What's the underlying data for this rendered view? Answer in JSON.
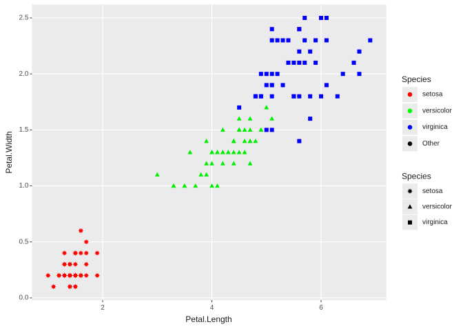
{
  "chart_data": {
    "type": "scatter",
    "x_label": "Petal.Length",
    "y_label": "Petal.Width",
    "xlim": [
      0.705,
      7.195
    ],
    "ylim": [
      -0.02,
      2.62
    ],
    "xticks": [
      2,
      4,
      6
    ],
    "yticks": [
      {
        "value": 0,
        "label": "0.0"
      },
      {
        "value": 0.5,
        "label": "0.5"
      },
      {
        "value": 1,
        "label": "1.0"
      },
      {
        "value": 1.5,
        "label": "1.5"
      },
      {
        "value": 2,
        "label": "2.0"
      },
      {
        "value": 2.5,
        "label": "2.5"
      }
    ],
    "grid": true,
    "series": [
      {
        "name": "setosa",
        "color": "#ff0000",
        "shape": "star",
        "x": [
          1.4,
          1.4,
          1.3,
          1.5,
          1.4,
          1.7,
          1.4,
          1.5,
          1.4,
          1.5,
          1.5,
          1.6,
          1.4,
          1.1,
          1.2,
          1.5,
          1.3,
          1.4,
          1.7,
          1.5,
          1.7,
          1.5,
          1.0,
          1.7,
          1.9,
          1.6,
          1.6,
          1.5,
          1.4,
          1.6,
          1.6,
          1.5,
          1.5,
          1.4,
          1.5,
          1.2,
          1.3,
          1.4,
          1.3,
          1.5,
          1.3,
          1.3,
          1.3,
          1.6,
          1.9,
          1.4,
          1.6,
          1.4,
          1.5,
          1.4
        ],
        "values": [
          0.2,
          0.2,
          0.2,
          0.2,
          0.2,
          0.4,
          0.3,
          0.2,
          0.2,
          0.1,
          0.2,
          0.2,
          0.1,
          0.1,
          0.2,
          0.4,
          0.4,
          0.3,
          0.3,
          0.3,
          0.2,
          0.4,
          0.2,
          0.5,
          0.2,
          0.2,
          0.4,
          0.2,
          0.2,
          0.2,
          0.2,
          0.4,
          0.1,
          0.2,
          0.2,
          0.2,
          0.2,
          0.1,
          0.2,
          0.2,
          0.3,
          0.3,
          0.2,
          0.6,
          0.4,
          0.3,
          0.2,
          0.2,
          0.2,
          0.2
        ]
      },
      {
        "name": "versicolor",
        "color": "#00ee00",
        "shape": "triangle",
        "x": [
          4.7,
          4.5,
          4.9,
          4.0,
          4.6,
          4.5,
          4.7,
          3.3,
          4.6,
          3.9,
          3.5,
          4.2,
          4.0,
          4.7,
          3.6,
          4.4,
          4.5,
          4.1,
          4.5,
          3.9,
          4.8,
          4.0,
          4.9,
          4.7,
          4.3,
          4.4,
          4.8,
          5.0,
          4.5,
          3.5,
          3.8,
          3.7,
          3.9,
          5.1,
          4.5,
          4.5,
          4.7,
          4.4,
          4.1,
          4.0,
          4.4,
          4.6,
          4.0,
          3.3,
          4.2,
          4.2,
          4.2,
          4.3,
          3.0,
          4.1
        ],
        "values": [
          1.4,
          1.5,
          1.5,
          1.3,
          1.5,
          1.3,
          1.6,
          1.0,
          1.3,
          1.4,
          1.0,
          1.5,
          1.0,
          1.4,
          1.3,
          1.4,
          1.5,
          1.0,
          1.5,
          1.1,
          1.8,
          1.3,
          1.5,
          1.2,
          1.3,
          1.4,
          1.4,
          1.7,
          1.5,
          1.0,
          1.1,
          1.0,
          1.2,
          1.6,
          1.5,
          1.6,
          1.5,
          1.3,
          1.3,
          1.3,
          1.2,
          1.4,
          1.2,
          1.0,
          1.3,
          1.2,
          1.3,
          1.3,
          1.1,
          1.3
        ]
      },
      {
        "name": "virginica",
        "color": "#0000ff",
        "shape": "square",
        "x": [
          6.0,
          5.1,
          5.9,
          5.6,
          5.8,
          6.6,
          4.5,
          6.3,
          5.8,
          6.1,
          5.1,
          5.3,
          5.5,
          5.0,
          5.1,
          5.3,
          5.5,
          6.7,
          6.9,
          5.0,
          5.7,
          4.9,
          6.7,
          4.9,
          5.7,
          6.0,
          4.8,
          4.9,
          5.6,
          5.8,
          6.1,
          6.4,
          5.6,
          5.1,
          5.6,
          6.1,
          5.6,
          5.5,
          4.8,
          5.4,
          5.6,
          5.1,
          5.1,
          5.9,
          5.7,
          5.2,
          5.0,
          5.2,
          5.4,
          5.1
        ],
        "values": [
          2.5,
          1.9,
          2.1,
          1.8,
          2.2,
          2.1,
          1.7,
          1.8,
          1.8,
          2.5,
          2.0,
          1.9,
          2.1,
          2.0,
          2.4,
          2.3,
          1.8,
          2.2,
          2.3,
          1.5,
          2.3,
          2.0,
          2.0,
          1.8,
          2.1,
          1.8,
          1.8,
          1.8,
          2.1,
          1.6,
          1.9,
          2.0,
          2.2,
          1.5,
          1.4,
          2.3,
          2.4,
          1.8,
          1.8,
          2.1,
          2.4,
          2.3,
          1.9,
          2.3,
          2.5,
          2.3,
          1.9,
          2.0,
          2.3,
          1.8
        ]
      }
    ],
    "legends": [
      {
        "title": "Species",
        "entries": [
          {
            "label": "setosa",
            "color": "#ff0000",
            "shape": "circle"
          },
          {
            "label": "versicolor",
            "color": "#00ff00",
            "shape": "circle"
          },
          {
            "label": "virginica",
            "color": "#0000ff",
            "shape": "circle"
          },
          {
            "label": "Other",
            "color": "#000000",
            "shape": "circle"
          }
        ]
      },
      {
        "title": "Species",
        "entries": [
          {
            "label": "setosa",
            "color": "#000000",
            "shape": "star"
          },
          {
            "label": "versicolor",
            "color": "#000000",
            "shape": "triangle"
          },
          {
            "label": "virginica",
            "color": "#000000",
            "shape": "square"
          }
        ]
      }
    ]
  }
}
